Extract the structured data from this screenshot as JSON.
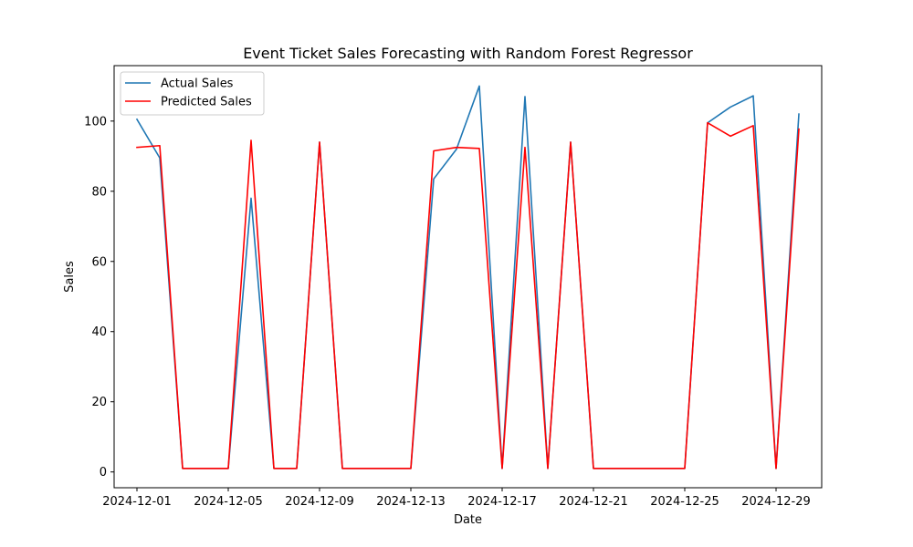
{
  "chart_data": {
    "type": "line",
    "title": "Event Ticket Sales Forecasting with Random Forest Regressor",
    "xlabel": "Date",
    "ylabel": "Sales",
    "x": [
      "2024-12-01",
      "2024-12-02",
      "2024-12-03",
      "2024-12-04",
      "2024-12-05",
      "2024-12-06",
      "2024-12-07",
      "2024-12-08",
      "2024-12-09",
      "2024-12-10",
      "2024-12-11",
      "2024-12-12",
      "2024-12-13",
      "2024-12-14",
      "2024-12-15",
      "2024-12-16",
      "2024-12-17",
      "2024-12-18",
      "2024-12-19",
      "2024-12-20",
      "2024-12-21",
      "2024-12-22",
      "2024-12-23",
      "2024-12-24",
      "2024-12-25",
      "2024-12-26",
      "2024-12-27",
      "2024-12-28",
      "2024-12-29",
      "2024-12-30"
    ],
    "xticks": [
      "2024-12-01",
      "2024-12-05",
      "2024-12-09",
      "2024-12-13",
      "2024-12-17",
      "2024-12-21",
      "2024-12-25",
      "2024-12-29"
    ],
    "yticks": [
      0,
      20,
      40,
      60,
      80,
      100
    ],
    "xlim": [
      "2024-11-30",
      "2024-12-31"
    ],
    "ylim": [
      -4.5,
      115.8
    ],
    "grid": false,
    "legend_position": "upper left",
    "series": [
      {
        "name": "Actual Sales",
        "color": "#1f77b4",
        "values": [
          100.5,
          89.5,
          1,
          1,
          1,
          78,
          1,
          1,
          94,
          1,
          1,
          1,
          1,
          83.5,
          92,
          110,
          1,
          107,
          1,
          94,
          1,
          1,
          1,
          1,
          1,
          99.5,
          104,
          107.2,
          1,
          102
        ]
      },
      {
        "name": "Predicted Sales",
        "color": "#ff0000",
        "values": [
          92.5,
          93,
          1,
          1,
          1,
          94.5,
          1,
          1,
          94,
          1,
          1,
          1,
          1,
          91.5,
          92.5,
          92.2,
          1,
          92.5,
          1,
          94,
          1,
          1,
          1,
          1,
          1,
          99.5,
          95.7,
          98.7,
          1,
          97.7
        ]
      }
    ]
  }
}
